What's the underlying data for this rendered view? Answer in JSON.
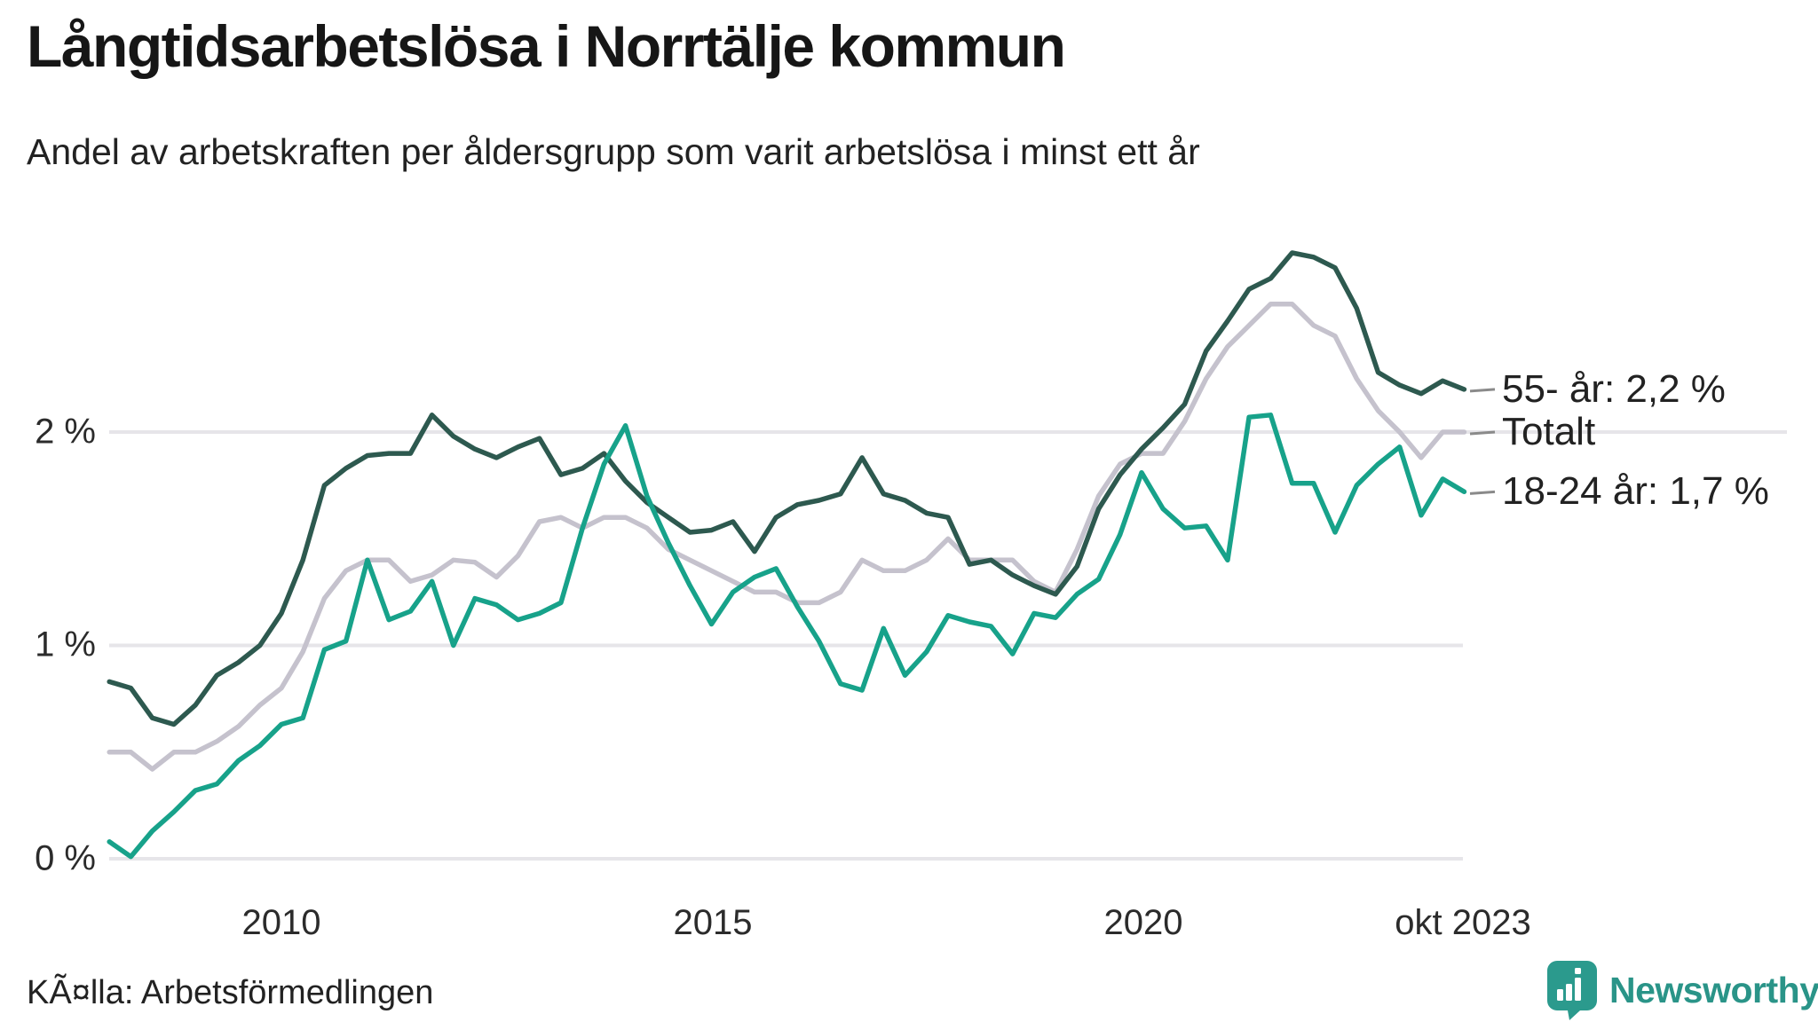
{
  "header": {
    "title": "Långtidsarbetslösa i Norrtälje kommun",
    "subtitle": "Andel av arbetskraften per åldersgrupp som varit arbetslösa i minst ett år"
  },
  "chart_data": {
    "type": "line",
    "title": "Långtidsarbetslösa i Norrtälje kommun",
    "subtitle": "Andel av arbetskraften per åldersgrupp som varit arbetslösa i minst ett år",
    "unit": "% av arbetskraften",
    "grid": "horizontal",
    "legend_position": "right-of-line-ends",
    "ylim": [
      0,
      3
    ],
    "xlim": [
      2008.0,
      2023.83
    ],
    "y_tick_labels": [
      "2 %",
      "1 %",
      "0 %"
    ],
    "y_tick_values": [
      2,
      1,
      0
    ],
    "x_tick_labels": [
      "2010",
      "2015",
      "2020",
      "okt 2023"
    ],
    "x_tick_values": [
      2010,
      2015,
      2020,
      2023.75
    ],
    "x": [
      2008.0,
      2008.25,
      2008.5,
      2008.75,
      2009.0,
      2009.25,
      2009.5,
      2009.75,
      2010.0,
      2010.25,
      2010.5,
      2010.75,
      2011.0,
      2011.25,
      2011.5,
      2011.75,
      2012.0,
      2012.25,
      2012.5,
      2012.75,
      2013.0,
      2013.25,
      2013.5,
      2013.75,
      2014.0,
      2014.25,
      2014.5,
      2014.75,
      2015.0,
      2015.25,
      2015.5,
      2015.75,
      2016.0,
      2016.25,
      2016.5,
      2016.75,
      2017.0,
      2017.25,
      2017.5,
      2017.75,
      2018.0,
      2018.25,
      2018.5,
      2018.75,
      2019.0,
      2019.25,
      2019.5,
      2019.75,
      2020.0,
      2020.25,
      2020.5,
      2020.75,
      2021.0,
      2021.25,
      2021.5,
      2021.75,
      2022.0,
      2022.25,
      2022.5,
      2022.75,
      2023.0,
      2023.25,
      2023.5,
      2023.75
    ],
    "series": [
      {
        "name": "Totalt",
        "label": "Totalt",
        "color": "#c5c2cd",
        "end_value": 2.0,
        "values": [
          0.5,
          0.5,
          0.42,
          0.5,
          0.5,
          0.55,
          0.62,
          0.72,
          0.8,
          0.97,
          1.22,
          1.35,
          1.4,
          1.4,
          1.3,
          1.33,
          1.4,
          1.39,
          1.32,
          1.42,
          1.58,
          1.6,
          1.55,
          1.6,
          1.6,
          1.55,
          1.45,
          1.4,
          1.35,
          1.3,
          1.25,
          1.25,
          1.2,
          1.2,
          1.25,
          1.4,
          1.35,
          1.35,
          1.4,
          1.5,
          1.4,
          1.4,
          1.4,
          1.3,
          1.25,
          1.45,
          1.7,
          1.85,
          1.9,
          1.9,
          2.05,
          2.25,
          2.4,
          2.5,
          2.6,
          2.6,
          2.5,
          2.45,
          2.25,
          2.1,
          2.0,
          1.88,
          2.0,
          2.0
        ]
      },
      {
        "name": "55- år",
        "label": "55- år: 2,2 %",
        "color": "#2d594f",
        "end_value": 2.2,
        "values": [
          0.83,
          0.8,
          0.66,
          0.63,
          0.72,
          0.86,
          0.92,
          1.0,
          1.15,
          1.4,
          1.75,
          1.83,
          1.89,
          1.9,
          1.9,
          2.08,
          1.98,
          1.92,
          1.88,
          1.93,
          1.97,
          1.8,
          1.83,
          1.9,
          1.77,
          1.67,
          1.6,
          1.53,
          1.54,
          1.58,
          1.44,
          1.6,
          1.66,
          1.68,
          1.71,
          1.88,
          1.71,
          1.68,
          1.62,
          1.6,
          1.38,
          1.4,
          1.33,
          1.28,
          1.24,
          1.37,
          1.64,
          1.8,
          1.92,
          2.02,
          2.13,
          2.38,
          2.52,
          2.67,
          2.72,
          2.84,
          2.82,
          2.77,
          2.58,
          2.28,
          2.22,
          2.18,
          2.24,
          2.2
        ]
      },
      {
        "name": "18-24 år",
        "label": "18-24 år: 1,7 %",
        "color": "#17a28a",
        "end_value": 1.7,
        "values": [
          0.08,
          0.01,
          0.13,
          0.22,
          0.32,
          0.35,
          0.46,
          0.53,
          0.63,
          0.66,
          0.98,
          1.02,
          1.4,
          1.12,
          1.16,
          1.3,
          1.0,
          1.22,
          1.19,
          1.12,
          1.15,
          1.2,
          1.55,
          1.85,
          2.03,
          1.7,
          1.48,
          1.28,
          1.1,
          1.25,
          1.32,
          1.36,
          1.18,
          1.02,
          0.82,
          0.79,
          1.08,
          0.86,
          0.97,
          1.14,
          1.11,
          1.09,
          0.96,
          1.15,
          1.13,
          1.24,
          1.31,
          1.52,
          1.81,
          1.64,
          1.55,
          1.56,
          1.4,
          2.07,
          2.08,
          1.76,
          1.76,
          1.53,
          1.75,
          1.85,
          1.93,
          1.61,
          1.78,
          1.72
        ]
      }
    ]
  },
  "footer": {
    "source": "KÃ¤lla: Arbetsförmedlingen",
    "brand": "Newsworthy"
  },
  "colors": {
    "series_55": "#2d594f",
    "series_totalt": "#c5c2cd",
    "series_1824": "#17a28a",
    "gridline": "#e6e5e9",
    "brand_teal": "#2a9488",
    "text": "#222222"
  }
}
